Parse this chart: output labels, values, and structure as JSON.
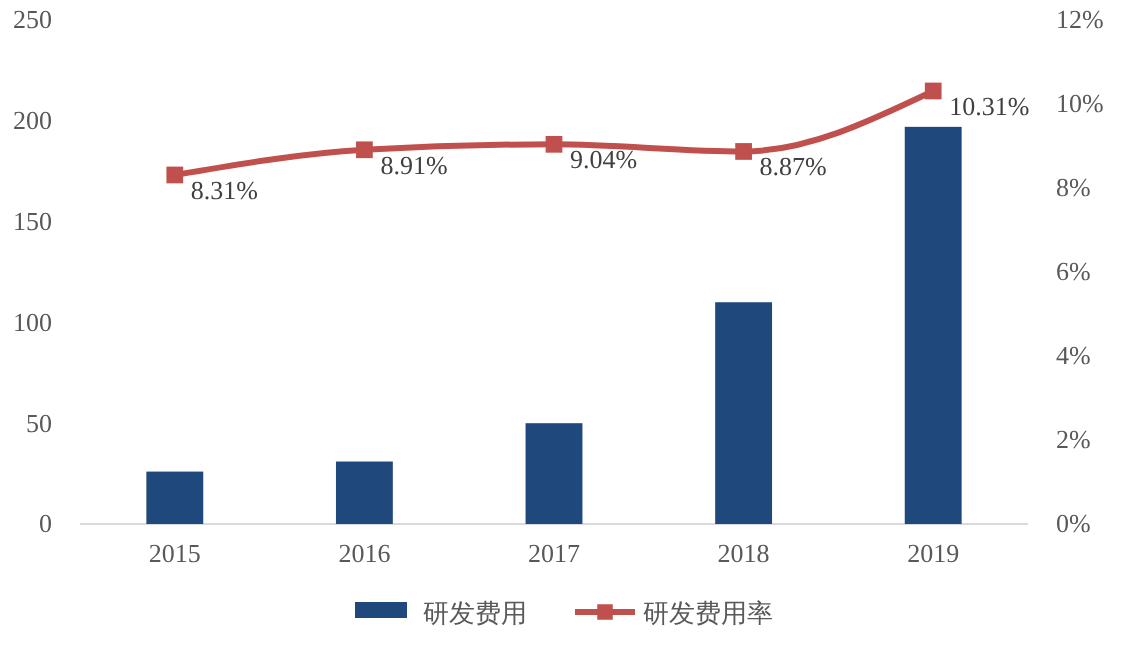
{
  "chart_data": {
    "type": "bar",
    "categories": [
      "2015",
      "2016",
      "2017",
      "2018",
      "2019"
    ],
    "series": [
      {
        "name": "研发费用",
        "color": "#1f497d",
        "values": [
          26,
          31,
          50,
          110,
          197
        ]
      },
      {
        "name": "研发费用率",
        "type": "line",
        "axis": "y2",
        "color": "#c0504d",
        "marker": "square",
        "values": [
          8.31,
          8.91,
          9.04,
          8.87,
          10.31
        ],
        "value_labels": [
          "8.31%",
          "8.91%",
          "9.04%",
          "8.87%",
          "10.31%"
        ]
      }
    ],
    "ylim": [
      0,
      250
    ],
    "yticks": [
      0,
      50,
      100,
      150,
      200,
      250
    ],
    "y2lim": [
      0,
      12
    ],
    "y2ticks": [
      {
        "value": 0,
        "label": "0%"
      },
      {
        "value": 2,
        "label": "2%"
      },
      {
        "value": 4,
        "label": "4%"
      },
      {
        "value": 6,
        "label": "6%"
      },
      {
        "value": 8,
        "label": "8%"
      },
      {
        "value": 10,
        "label": "10%"
      },
      {
        "value": 12,
        "label": "12%"
      }
    ],
    "grid": false,
    "legend": "bottom"
  }
}
